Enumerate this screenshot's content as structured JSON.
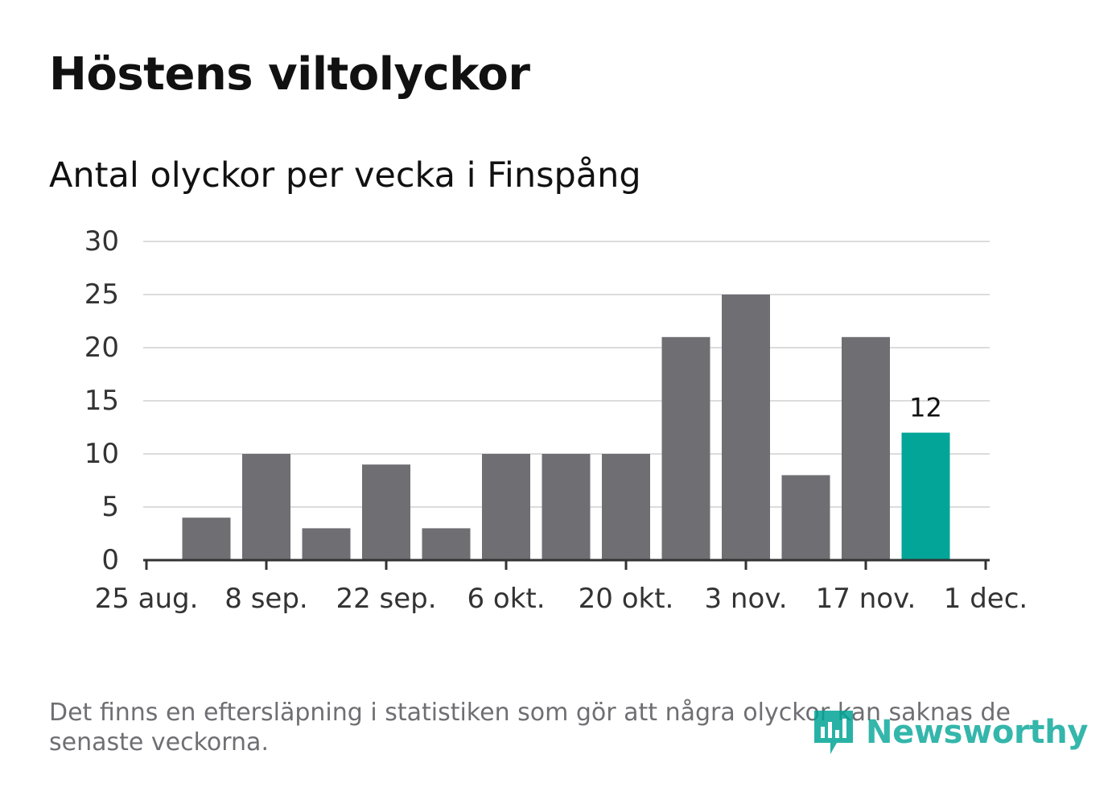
{
  "title": "Höstens viltolyckor",
  "subtitle": "Antal olyckor per vecka i Finspång",
  "footnote": "Det finns en eftersläpning i statistiken som gör att några olyckor kan saknas de senaste veckorna.",
  "logo": {
    "text": "Newsworthy",
    "icon": "bar-chart-badge-icon",
    "color": "#02a597"
  },
  "colors": {
    "bar": "#6f6e73",
    "highlight": "#02a597",
    "grid": "#dcdcdc",
    "axis": "#333333"
  },
  "chart_data": {
    "type": "bar",
    "title": "Höstens viltolyckor",
    "subtitle": "Antal olyckor per vecka i Finspång",
    "xlabel": "",
    "ylabel": "",
    "x_tick_labels": [
      "25 aug.",
      "8 sep.",
      "22 sep.",
      "6 okt.",
      "20 okt.",
      "3 nov.",
      "17 nov.",
      "1 dec."
    ],
    "weeks": [
      "1 sep.",
      "8 sep.",
      "15 sep.",
      "22 sep.",
      "29 sep.",
      "6 okt.",
      "13 okt.",
      "20 okt.",
      "27 okt.",
      "3 nov.",
      "10 nov.",
      "17 nov.",
      "24 nov."
    ],
    "values": [
      4,
      10,
      3,
      9,
      3,
      10,
      10,
      10,
      21,
      25,
      8,
      21,
      12
    ],
    "highlight_last": true,
    "data_labels": [
      {
        "week": "24 nov.",
        "value": 12,
        "text": "12"
      }
    ],
    "ylim": [
      0,
      30
    ],
    "y_ticks": [
      0,
      5,
      10,
      15,
      20,
      25,
      30
    ],
    "grid": true,
    "legend": "none"
  }
}
